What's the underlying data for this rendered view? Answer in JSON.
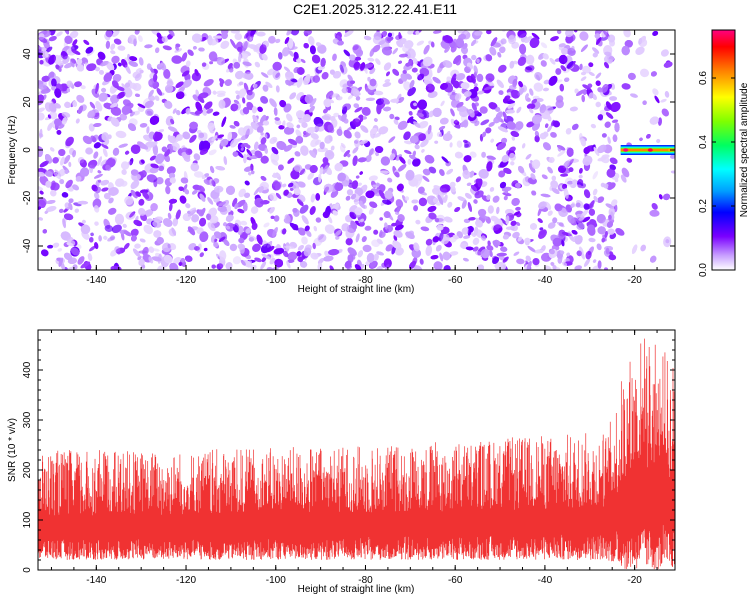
{
  "page_title": "C2E1.2025.312.22.41.E11",
  "chart_data": [
    {
      "type": "heatmap",
      "title": "C2E1.2025.312.22.41.E11",
      "xlabel": "Height of straight line (km)",
      "ylabel": "Frequency (Hz)",
      "xlim": [
        -153,
        -11
      ],
      "ylim": [
        -50,
        50
      ],
      "x_ticks": [
        -140,
        -120,
        -100,
        -80,
        -60,
        -40,
        -20
      ],
      "y_ticks": [
        -40,
        -20,
        0,
        20,
        40
      ],
      "colorbar": {
        "label": "Normalized spectral amplitude",
        "range": [
          0,
          0.75
        ],
        "ticks": [
          0.0,
          0.2,
          0.4,
          0.6
        ],
        "colors": [
          "#ffffff",
          "#c8a0ff",
          "#7a00ff",
          "#0000ff",
          "#00a0ff",
          "#00ffff",
          "#00ff60",
          "#80ff00",
          "#ffff00",
          "#ff8000",
          "#ff0000",
          "#ff0080"
        ]
      },
      "noise_amplitude_typical": [
        0.02,
        0.12
      ],
      "signal_region": {
        "x_range": [
          -24,
          -11
        ],
        "frequency": 0,
        "amplitude_max": 0.75
      }
    },
    {
      "type": "area",
      "xlabel": "Height of straight line (km)",
      "ylabel": "SNR (10 * v/v)",
      "xlim": [
        -153,
        -11
      ],
      "ylim": [
        0,
        480
      ],
      "x_ticks": [
        -140,
        -120,
        -100,
        -80,
        -60,
        -40,
        -20
      ],
      "y_ticks": [
        0,
        100,
        200,
        300,
        400
      ],
      "series_color": "#f03232",
      "envelope": [
        {
          "x": -153,
          "low": 20,
          "high": 240
        },
        {
          "x": -120,
          "low": 20,
          "high": 240
        },
        {
          "x": -80,
          "low": 20,
          "high": 250
        },
        {
          "x": -40,
          "low": 20,
          "high": 270
        },
        {
          "x": -26,
          "low": 20,
          "high": 280
        },
        {
          "x": -22,
          "low": 0,
          "high": 420
        },
        {
          "x": -18,
          "low": 0,
          "high": 480
        },
        {
          "x": -11,
          "low": 0,
          "high": 420
        }
      ]
    }
  ]
}
